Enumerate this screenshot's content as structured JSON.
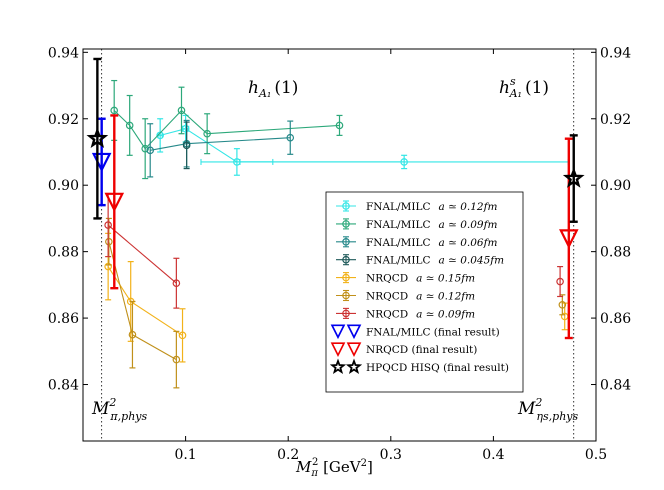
{
  "chart_data": {
    "type": "scatter",
    "title": "",
    "xlabel": "M_π^2 [GeV^2]",
    "xlabel_main": "M",
    "xlabel_sub": "π",
    "xlabel_sup": "2",
    "xlabel_unit": " [GeV",
    "xlabel_unit_sup": "2",
    "xlabel_unit_close": "]",
    "ylabel": "",
    "xlim": [
      0.0,
      0.5
    ],
    "ylim": [
      0.823,
      0.941
    ],
    "xticks": [
      0.1,
      0.2,
      0.3,
      0.4,
      0.5
    ],
    "xtick_labels": [
      "0.1",
      "0.2",
      "0.3",
      "0.4",
      "0.5"
    ],
    "yticks": [
      0.84,
      0.86,
      0.88,
      0.9,
      0.92,
      0.94
    ],
    "ytick_labels": [
      "0.84",
      "0.86",
      "0.88",
      "0.90",
      "0.92",
      "0.94"
    ],
    "annotations": {
      "h_left_main": "h",
      "h_left_sub": "A₁",
      "h_left_arg": "(1)",
      "h_right_main": "h",
      "h_right_sup": "s",
      "h_right_sub": "A₁",
      "h_right_arg": "(1)",
      "phys_left_main": "M",
      "phys_left_sup": "2",
      "phys_left_sub": "π,phys",
      "phys_right_main": "M",
      "phys_right_sup": "2",
      "phys_right_sub": "ηs,phys"
    },
    "vlines": [
      {
        "name": "pion-physical-line",
        "x": 0.0182
      },
      {
        "name": "etas-physical-line",
        "x": 0.4783
      }
    ],
    "series": [
      {
        "name": "FNAL/MILC",
        "spacing": "a ≃ 0.12fm",
        "color": "#33e6e6",
        "marker": "circle",
        "connect": true,
        "points": [
          [
            0.0752,
            0.915,
            0.005
          ],
          [
            0.1,
            0.917,
            0.004
          ],
          [
            0.15,
            0.907,
            0.004
          ],
          [
            0.313,
            0.907,
            0.002
          ]
        ],
        "xerr": [
          [
            0.0752,
            0.915,
            0.002
          ],
          [
            0.1,
            0.917,
            0.003
          ],
          [
            0.15,
            0.907,
            0.035
          ],
          [
            0.313,
            0.907,
            0.16
          ]
        ]
      },
      {
        "name": "FNAL/MILC",
        "spacing": "a ≃ 0.09fm",
        "color": "#2ca87a",
        "marker": "circle",
        "connect": true,
        "points": [
          [
            0.0304,
            0.9225,
            0.009
          ],
          [
            0.0455,
            0.918,
            0.009
          ],
          [
            0.0606,
            0.911,
            0.009
          ],
          [
            0.096,
            0.9225,
            0.007
          ],
          [
            0.121,
            0.9155,
            0.006
          ],
          [
            0.25,
            0.918,
            0.003
          ]
        ]
      },
      {
        "name": "FNAL/MILC",
        "spacing": "a ≃ 0.06fm",
        "color": "#26898a",
        "marker": "circle",
        "connect": true,
        "points": [
          [
            0.0655,
            0.9105,
            0.008
          ],
          [
            0.101,
            0.9125,
            0.007
          ],
          [
            0.202,
            0.9143,
            0.005
          ]
        ]
      },
      {
        "name": "FNAL/MILC",
        "spacing": "a ≃ 0.045fm",
        "color": "#1f5a5a",
        "marker": "circle",
        "connect": true,
        "points": [
          [
            0.101,
            0.912,
            0.007
          ]
        ]
      },
      {
        "name": "NRQCD",
        "spacing": "a ≃ 0.15fm",
        "color": "#f2b21a",
        "marker": "circle",
        "connect": true,
        "points": [
          [
            0.0245,
            0.8755,
            0.01
          ],
          [
            0.0465,
            0.865,
            0.012
          ],
          [
            0.097,
            0.8548,
            0.008
          ]
        ],
        "extra_points": [
          [
            0.4695,
            0.8605,
            0.004
          ]
        ]
      },
      {
        "name": "NRQCD",
        "spacing": "a ≃ 0.12fm",
        "color": "#c0901a",
        "marker": "circle",
        "connect": true,
        "points": [
          [
            0.0252,
            0.883,
            0.007
          ],
          [
            0.0482,
            0.855,
            0.01
          ],
          [
            0.091,
            0.8475,
            0.0085
          ]
        ],
        "extra_points": [
          [
            0.4672,
            0.864,
            0.003
          ]
        ]
      },
      {
        "name": "NRQCD",
        "spacing": "a ≃ 0.09fm",
        "color": "#cc3333",
        "marker": "circle",
        "connect": true,
        "points": [
          [
            0.0245,
            0.888,
            0.0095
          ],
          [
            0.091,
            0.8705,
            0.0075
          ]
        ],
        "extra_points": [
          [
            0.465,
            0.871,
            0.0045
          ]
        ]
      },
      {
        "name": "FNAL/MILC (final result)",
        "spacing": "",
        "color": "#0000ee",
        "marker": "triangle",
        "connect": false,
        "points": [
          [
            0.0182,
            0.907,
            0.013
          ]
        ]
      },
      {
        "name": "NRQCD (final result)",
        "spacing": "",
        "color": "#ee0000",
        "marker": "triangle",
        "connect": false,
        "points": [
          [
            0.0305,
            0.895,
            0.026
          ],
          [
            0.4735,
            0.884,
            0.03
          ]
        ]
      },
      {
        "name": "HPQCD HISQ (final result)",
        "spacing": "",
        "color": "#000000",
        "marker": "star",
        "connect": false,
        "points": [
          [
            0.014,
            0.914,
            0.024
          ],
          [
            0.4783,
            0.902,
            0.013
          ]
        ]
      }
    ],
    "legend_position": "center-right"
  }
}
